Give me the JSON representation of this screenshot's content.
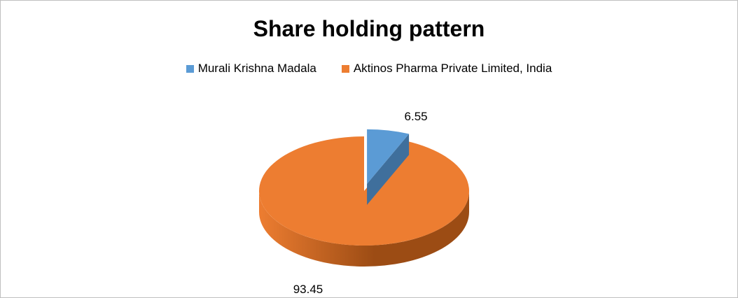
{
  "chart_data": {
    "type": "pie",
    "title": "Share holding pattern",
    "legend_position": "top",
    "series": [
      {
        "name": "Murali Krishna Madala",
        "value": 6.55,
        "label": "6.55",
        "color": "#5b9bd5",
        "dark": "#3f6f9c"
      },
      {
        "name": "Aktinos Pharma Private Limited, India",
        "value": 93.45,
        "label": "93.45",
        "color": "#ed7d31",
        "dark": "#9c4c14"
      }
    ]
  }
}
